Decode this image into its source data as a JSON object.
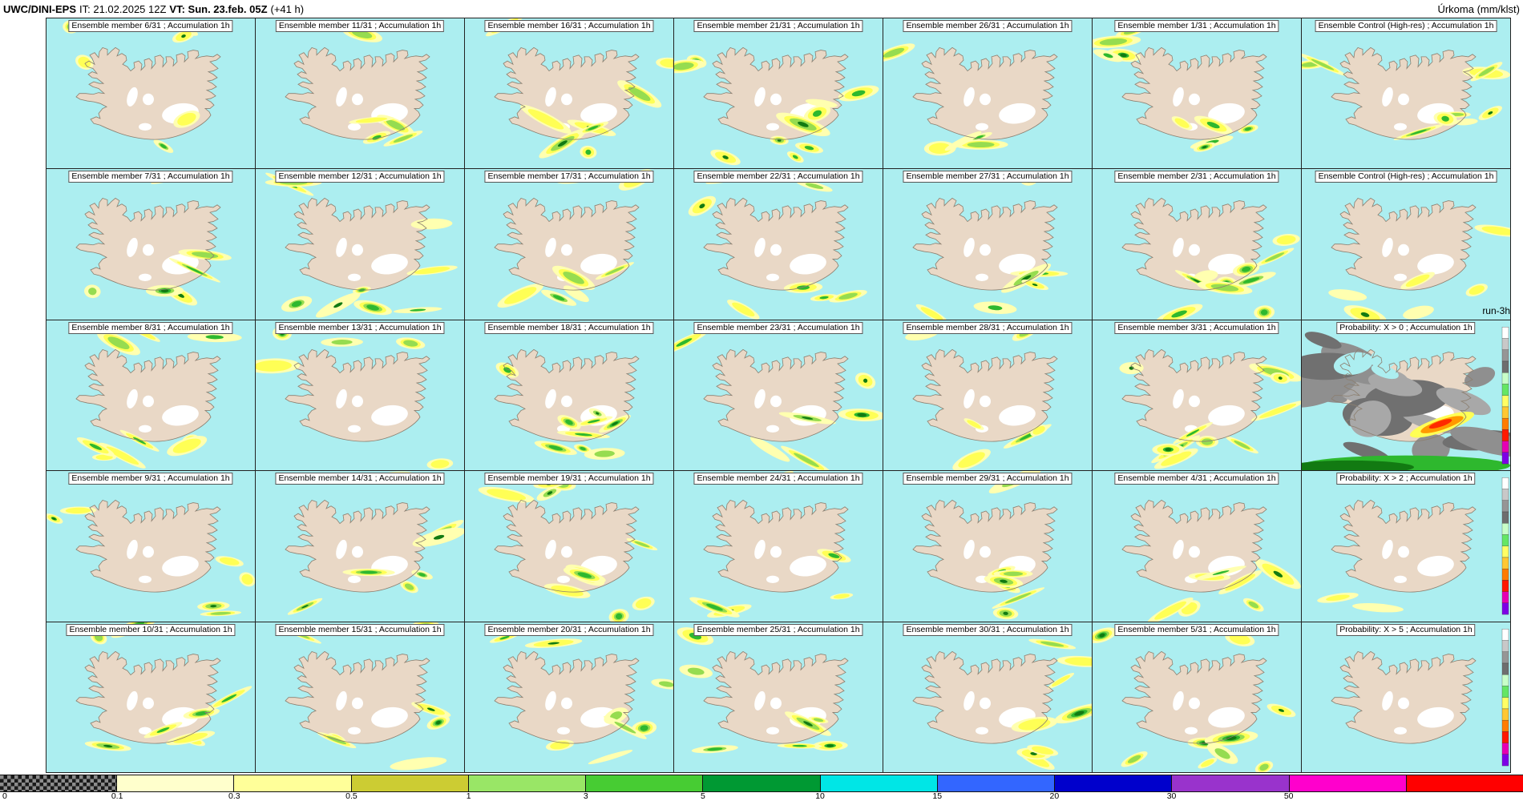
{
  "header": {
    "model": "UWC/DINI-EPS",
    "init": "IT: 21.02.2025 12Z",
    "valid": "VT: Sun. 23.feb. 05Z",
    "lead": "(+41 h)",
    "unit": "Úrkoma (mm/klst)"
  },
  "run_label": "run-3h",
  "grid": {
    "rows": 5,
    "cols": 7
  },
  "panels": [
    {
      "title": "Ensemble member 6/31 ; Accumulation 1h",
      "type": "member"
    },
    {
      "title": "Ensemble member 11/31 ; Accumulation 1h",
      "type": "member"
    },
    {
      "title": "Ensemble member 16/31 ; Accumulation 1h",
      "type": "member"
    },
    {
      "title": "Ensemble member 21/31 ; Accumulation 1h",
      "type": "member"
    },
    {
      "title": "Ensemble member 26/31 ; Accumulation 1h",
      "type": "member"
    },
    {
      "title": "Ensemble member 1/31 ; Accumulation 1h",
      "type": "member"
    },
    {
      "title": "Ensemble Control (High-res) ; Accumulation 1h",
      "type": "control"
    },
    {
      "title": "Ensemble member 7/31 ; Accumulation 1h",
      "type": "member"
    },
    {
      "title": "Ensemble member 12/31 ; Accumulation 1h",
      "type": "member"
    },
    {
      "title": "Ensemble member 17/31 ; Accumulation 1h",
      "type": "member"
    },
    {
      "title": "Ensemble member 22/31 ; Accumulation 1h",
      "type": "member"
    },
    {
      "title": "Ensemble member 27/31 ; Accumulation 1h",
      "type": "member"
    },
    {
      "title": "Ensemble member 2/31 ; Accumulation 1h",
      "type": "member"
    },
    {
      "title": "Ensemble Control (High-res) ; Accumulation 1h",
      "type": "control"
    },
    {
      "title": "Ensemble member 8/31 ; Accumulation 1h",
      "type": "member"
    },
    {
      "title": "Ensemble member 13/31 ; Accumulation 1h",
      "type": "member"
    },
    {
      "title": "Ensemble member 18/31 ; Accumulation 1h",
      "type": "member"
    },
    {
      "title": "Ensemble member 23/31 ; Accumulation 1h",
      "type": "member"
    },
    {
      "title": "Ensemble member 28/31 ; Accumulation 1h",
      "type": "member"
    },
    {
      "title": "Ensemble member 3/31 ; Accumulation 1h",
      "type": "member"
    },
    {
      "title": "Probability: X > 0 ; Accumulation 1h",
      "type": "prob0"
    },
    {
      "title": "Ensemble member 9/31 ; Accumulation 1h",
      "type": "member"
    },
    {
      "title": "Ensemble member 14/31 ; Accumulation 1h",
      "type": "member"
    },
    {
      "title": "Ensemble member 19/31 ; Accumulation 1h",
      "type": "member"
    },
    {
      "title": "Ensemble member 24/31 ; Accumulation 1h",
      "type": "member"
    },
    {
      "title": "Ensemble member 29/31 ; Accumulation 1h",
      "type": "member"
    },
    {
      "title": "Ensemble member 4/31 ; Accumulation 1h",
      "type": "member"
    },
    {
      "title": "Probability: X > 2 ; Accumulation 1h",
      "type": "prob2"
    },
    {
      "title": "Ensemble member 10/31 ; Accumulation 1h",
      "type": "member"
    },
    {
      "title": "Ensemble member 15/31 ; Accumulation 1h",
      "type": "member"
    },
    {
      "title": "Ensemble member 20/31 ; Accumulation 1h",
      "type": "member"
    },
    {
      "title": "Ensemble member 25/31 ; Accumulation 1h",
      "type": "member"
    },
    {
      "title": "Ensemble member 30/31 ; Accumulation 1h",
      "type": "member"
    },
    {
      "title": "Ensemble member 5/31 ; Accumulation 1h",
      "type": "member"
    },
    {
      "title": "Probability: X > 5 ; Accumulation 1h",
      "type": "prob5"
    }
  ],
  "colorbar": {
    "ticks": [
      "0",
      "0.1",
      "0.3",
      "0.5",
      "1",
      "3",
      "5",
      "10",
      "15",
      "20",
      "30",
      "50"
    ],
    "segments": [
      "checker",
      "#ffffcc",
      "#ffff99",
      "#cccc33",
      "#99e666",
      "#47cc33",
      "#009933",
      "#00e6e6",
      "#3366ff",
      "#0000cc",
      "#9933cc",
      "#ff00cc",
      "#ff0000"
    ]
  },
  "map_colors": {
    "ocean": "#aceef0",
    "land": "#e9d8c6",
    "glacier": "#ffffff",
    "coast": "#8c7f70",
    "precip": [
      "#ffffb0",
      "#ffff55",
      "#96dc50",
      "#2eb82e",
      "#127a12"
    ],
    "prob_gray": [
      "#8f8f8f",
      "#707070",
      "#a8a8a8"
    ],
    "prob_streak": [
      "#ffff55",
      "#ff9900",
      "#ff2a00"
    ]
  },
  "prob_scale": [
    "#ffffff",
    "#c8c8c8",
    "#969696",
    "#6e6e6e",
    "#c8ffc8",
    "#64e664",
    "#ffff64",
    "#ffc832",
    "#ff7d00",
    "#ff1900",
    "#e600b4",
    "#7d00e6"
  ]
}
